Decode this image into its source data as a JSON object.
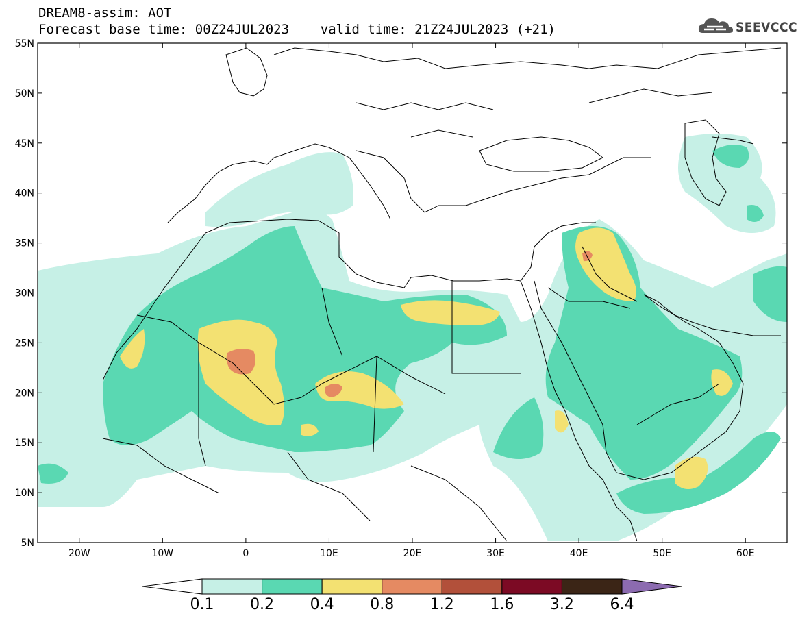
{
  "header": {
    "line1": "DREAM8-assim: AOT",
    "line2": "Forecast base time: 00Z24JUL2023    valid time: 21Z24JUL2023 (+21)"
  },
  "logo": {
    "text": "SEEVCCC"
  },
  "map": {
    "lon_range": [
      -25,
      65
    ],
    "lat_range": [
      5,
      55
    ],
    "lat_ticks": [
      "55N",
      "50N",
      "45N",
      "40N",
      "35N",
      "30N",
      "25N",
      "20N",
      "15N",
      "10N",
      "5N"
    ],
    "lon_ticks": [
      "20W",
      "10W",
      "0",
      "10E",
      "20E",
      "30E",
      "40E",
      "50E",
      "60E"
    ]
  },
  "colorbar": {
    "labels": [
      "0.1",
      "0.2",
      "0.4",
      "0.8",
      "1.2",
      "1.6",
      "3.2",
      "6.4"
    ],
    "colors": [
      "#ffffff",
      "#c6f0e6",
      "#5ad8b2",
      "#f3e172",
      "#e58a62",
      "#b2503a",
      "#7c0a24",
      "#3b2516",
      "#8c6bb0"
    ]
  }
}
